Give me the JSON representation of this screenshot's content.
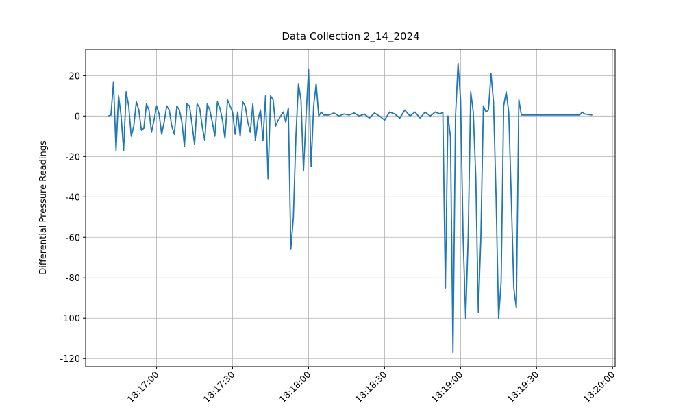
{
  "chart_data": {
    "type": "line",
    "title": "Data Collection 2_14_2024",
    "y_label": "Differential Pressure Readings",
    "grid": true,
    "xlim": [
      "18:16:32",
      "18:20:01"
    ],
    "xticks": [
      "18:17:00",
      "18:17:30",
      "18:18:00",
      "18:18:30",
      "18:19:00",
      "18:19:30",
      "18:20:00"
    ],
    "ylim": [
      -124,
      33
    ],
    "yticks": [
      -120,
      -100,
      -80,
      -60,
      -40,
      -20,
      0,
      20
    ],
    "x": [
      "18:16:41",
      "18:16:42",
      "18:16:43",
      "18:16:44",
      "18:16:45",
      "18:16:46",
      "18:16:47",
      "18:16:48",
      "18:16:49",
      "18:16:50",
      "18:16:51",
      "18:16:52",
      "18:16:53",
      "18:16:54",
      "18:16:55",
      "18:16:56",
      "18:16:57",
      "18:16:58",
      "18:16:59",
      "18:17:00",
      "18:17:01",
      "18:17:02",
      "18:17:03",
      "18:17:04",
      "18:17:05",
      "18:17:06",
      "18:17:07",
      "18:17:08",
      "18:17:09",
      "18:17:10",
      "18:17:11",
      "18:17:12",
      "18:17:13",
      "18:17:14",
      "18:17:15",
      "18:17:16",
      "18:17:17",
      "18:17:18",
      "18:17:19",
      "18:17:20",
      "18:17:21",
      "18:17:22",
      "18:17:23",
      "18:17:24",
      "18:17:25",
      "18:17:26",
      "18:17:27",
      "18:17:28",
      "18:17:29",
      "18:17:30",
      "18:17:31",
      "18:17:32",
      "18:17:33",
      "18:17:34",
      "18:17:35",
      "18:17:36",
      "18:17:37",
      "18:17:38",
      "18:17:39",
      "18:17:40",
      "18:17:41",
      "18:17:42",
      "18:17:43",
      "18:17:44",
      "18:17:45",
      "18:17:46",
      "18:17:47",
      "18:17:48",
      "18:17:49",
      "18:17:50",
      "18:17:51",
      "18:17:52",
      "18:17:53",
      "18:17:54",
      "18:17:55",
      "18:17:56",
      "18:17:57",
      "18:17:58",
      "18:17:59",
      "18:18:00",
      "18:18:01",
      "18:18:02",
      "18:18:03",
      "18:18:04",
      "18:18:05",
      "18:18:06",
      "18:18:08",
      "18:18:10",
      "18:18:12",
      "18:18:14",
      "18:18:16",
      "18:18:18",
      "18:18:20",
      "18:18:22",
      "18:18:24",
      "18:18:26",
      "18:18:28",
      "18:18:30",
      "18:18:32",
      "18:18:34",
      "18:18:36",
      "18:18:38",
      "18:18:40",
      "18:18:42",
      "18:18:44",
      "18:18:46",
      "18:18:48",
      "18:18:50",
      "18:18:52",
      "18:18:53",
      "18:18:54",
      "18:18:55",
      "18:18:56",
      "18:18:57",
      "18:18:58",
      "18:18:59",
      "18:19:00",
      "18:19:01",
      "18:19:02",
      "18:19:03",
      "18:19:04",
      "18:19:05",
      "18:19:06",
      "18:19:07",
      "18:19:08",
      "18:19:09",
      "18:19:10",
      "18:19:11",
      "18:19:12",
      "18:19:13",
      "18:19:14",
      "18:19:15",
      "18:19:16",
      "18:19:17",
      "18:19:18",
      "18:19:19",
      "18:19:20",
      "18:19:21",
      "18:19:22",
      "18:19:23",
      "18:19:24",
      "18:19:28",
      "18:19:32",
      "18:19:36",
      "18:19:40",
      "18:19:44",
      "18:19:47",
      "18:19:48",
      "18:19:49",
      "18:19:52"
    ],
    "series": [
      {
        "name": "Differential Pressure",
        "color": "#1f77b4",
        "values": [
          0,
          0.5,
          17,
          -17,
          10,
          0,
          -17,
          12,
          5,
          -10,
          -5,
          7,
          3,
          -7,
          -6,
          6,
          3,
          -8,
          -2,
          5,
          1,
          -9,
          -3,
          5,
          3,
          -5,
          -9,
          5,
          3,
          -3,
          -15,
          6,
          5,
          -4,
          -14,
          6,
          4,
          -5,
          -12,
          6,
          3,
          -3,
          -10,
          7,
          4,
          -2,
          -11,
          8,
          5,
          2,
          -9,
          2,
          -10,
          7,
          5,
          -3,
          -8,
          6,
          -12,
          -2,
          3,
          -12,
          10,
          -31,
          10,
          8,
          -5,
          -2,
          0,
          2,
          -3,
          4,
          -66,
          -50,
          -10,
          16,
          8,
          -27,
          0,
          23,
          -25,
          5,
          16,
          0,
          2,
          0.5,
          0.5,
          1.5,
          0,
          1,
          0.5,
          1.5,
          0,
          1,
          -1,
          1.5,
          0,
          -2,
          2,
          1,
          -1,
          3,
          0,
          2,
          -1,
          2,
          0,
          2,
          1,
          2,
          -85,
          0,
          -10,
          -117,
          0,
          26,
          8,
          -60,
          -100,
          -60,
          12,
          2,
          -30,
          -97,
          -60,
          5,
          2,
          3,
          21,
          7,
          -40,
          -100,
          -82,
          5,
          12,
          2,
          -40,
          -85,
          -95,
          8,
          0.5,
          0.5,
          0.5,
          0.5,
          0.5,
          0.5,
          0.5,
          2,
          1,
          0.5
        ]
      }
    ]
  }
}
